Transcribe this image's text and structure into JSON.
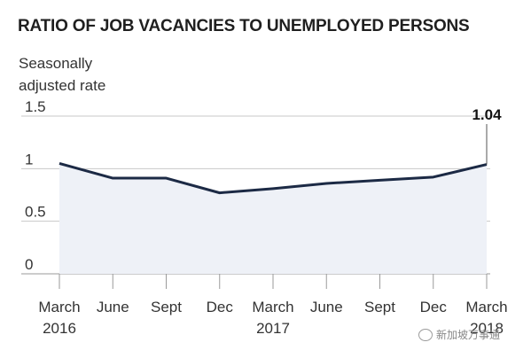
{
  "title": "RATIO OF JOB VACANCIES TO UNEMPLOYED PERSONS",
  "ylabel_lines": [
    "Seasonally",
    "adjusted rate"
  ],
  "watermark": "新加坡万事通",
  "colors": {
    "line": "#1c2a45",
    "area": "#eef1f7",
    "grid": "#c8c8c8",
    "text": "#333333"
  },
  "chart_data": {
    "type": "area",
    "title": "RATIO OF JOB VACANCIES TO UNEMPLOYED PERSONS",
    "ylabel": "Seasonally adjusted rate",
    "xlabel": "",
    "x": [
      "March 2016",
      "June",
      "Sept",
      "Dec",
      "March 2017",
      "June",
      "Sept",
      "Dec",
      "March 2018"
    ],
    "x_tick_labels": [
      [
        "March",
        "2016"
      ],
      [
        "June"
      ],
      [
        "Sept"
      ],
      [
        "Dec"
      ],
      [
        "March",
        "2017"
      ],
      [
        "June"
      ],
      [
        "Sept"
      ],
      [
        "Dec"
      ],
      [
        "March",
        "2018"
      ]
    ],
    "series": [
      {
        "values": [
          1.05,
          0.91,
          0.91,
          0.77,
          0.81,
          0.86,
          0.89,
          0.92,
          1.04
        ]
      }
    ],
    "yticks": [
      0,
      0.5,
      1,
      1.5
    ],
    "ytick_labels": [
      "0",
      "0.5",
      "1",
      "1.5"
    ],
    "ylim": [
      0,
      1.5
    ],
    "grid": true,
    "annotations": [
      {
        "index": 8,
        "text": "1.04"
      }
    ]
  }
}
